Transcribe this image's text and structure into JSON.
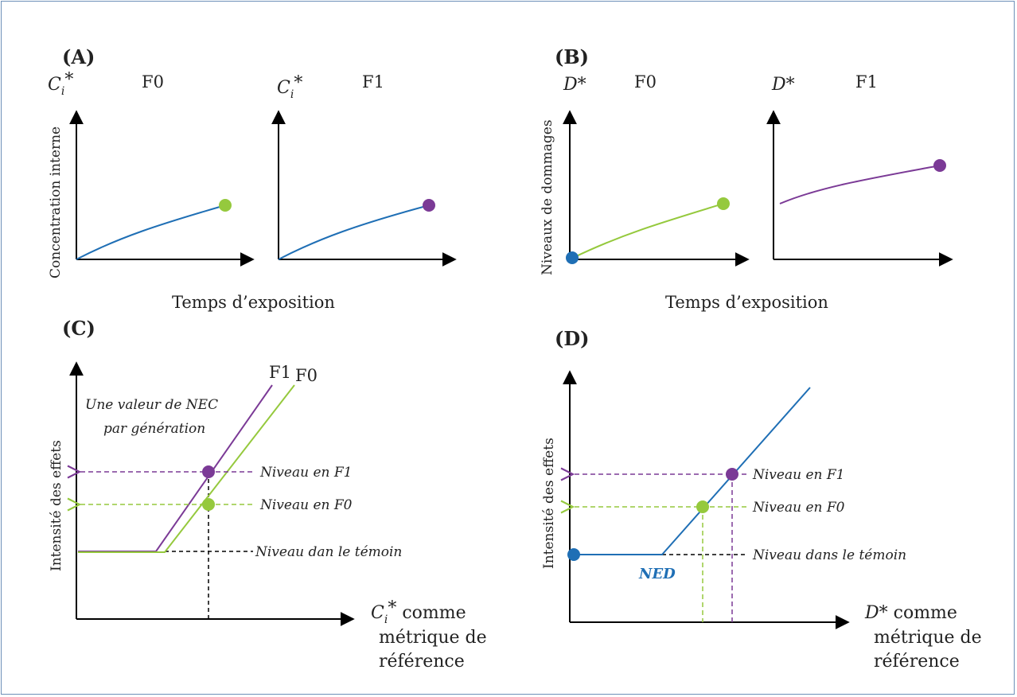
{
  "panels": {
    "a": {
      "label": "(A)",
      "ylabel": "Concentration interne",
      "xlabel": "Temps d’exposition",
      "left": {
        "axis": "C",
        "axis_sub": "i",
        "axis_sup": "*",
        "gen": "F0"
      },
      "right": {
        "axis": "C",
        "axis_sub": "i",
        "axis_sup": "*",
        "gen": "F1"
      }
    },
    "b": {
      "label": "(B)",
      "ylabel": "Niveaux de dommages",
      "xlabel": "Temps d’exposition",
      "left": {
        "axis": "D*",
        "gen": "F0"
      },
      "right": {
        "axis": "D*",
        "gen": "F1"
      }
    },
    "c": {
      "label": "(C)",
      "ylabel": "Intensité des effets",
      "line_f1": "F1",
      "line_f0": "F0",
      "note_line1": "Une valeur de NEC",
      "note_line2": "par génération",
      "level_f1": "Niveau en F1",
      "level_f0": "Niveau en F0",
      "level_control": "Niveau dan le témoin",
      "x_axis_var": "C",
      "x_axis_sub": "i",
      "x_axis_sup": "*",
      "x_line1": " comme",
      "x_line2": "métrique de",
      "x_line3": "référence"
    },
    "d": {
      "label": "(D)",
      "ylabel": "Intensité des effets",
      "level_f1": "Niveau en F1",
      "level_f0": "Niveau en F0",
      "level_control": "Niveau dans le témoin",
      "threshold": "NED",
      "x_axis_var": "D*",
      "x_line1": " comme",
      "x_line2": "métrique de",
      "x_line3": "référence"
    }
  },
  "colors": {
    "blue": "#1f6fb5",
    "green": "#95c93d",
    "purple": "#7b3a96",
    "black": "#000000",
    "frame": "#6d90b8"
  }
}
